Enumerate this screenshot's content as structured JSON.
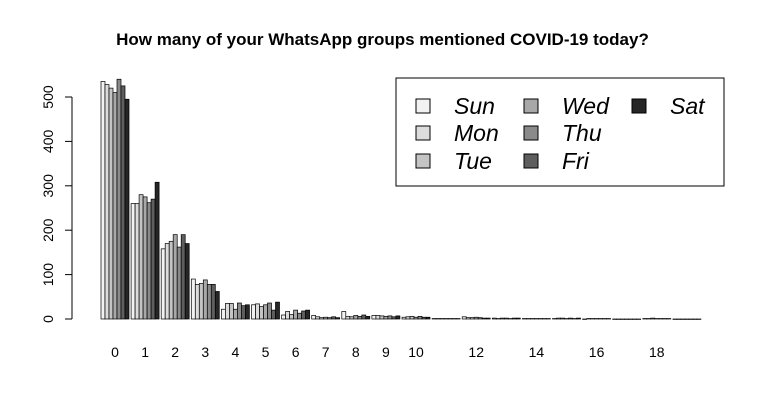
{
  "chart_data": {
    "type": "bar",
    "title": "How many of your WhatsApp groups mentioned COVID-19 today?",
    "xlabel": "",
    "ylabel": "",
    "ylim": [
      0,
      550
    ],
    "yticks": [
      0,
      100,
      200,
      300,
      400,
      500
    ],
    "categories": [
      "0",
      "1",
      "2",
      "3",
      "4",
      "5",
      "6",
      "7",
      "8",
      "9",
      "10",
      "11",
      "12",
      "13",
      "14",
      "15",
      "16",
      "17",
      "18",
      "19"
    ],
    "x_tick_labels": [
      {
        "index": 0,
        "label": "0"
      },
      {
        "index": 1,
        "label": "1"
      },
      {
        "index": 2,
        "label": "2"
      },
      {
        "index": 3,
        "label": "3"
      },
      {
        "index": 4,
        "label": "4"
      },
      {
        "index": 5,
        "label": "5"
      },
      {
        "index": 6,
        "label": "6"
      },
      {
        "index": 7,
        "label": "7"
      },
      {
        "index": 8,
        "label": "8"
      },
      {
        "index": 9,
        "label": "9"
      },
      {
        "index": 10,
        "label": "10"
      },
      {
        "index": 12,
        "label": "12"
      },
      {
        "index": 14,
        "label": "14"
      },
      {
        "index": 16,
        "label": "16"
      },
      {
        "index": 18,
        "label": "18"
      }
    ],
    "grid": false,
    "legend_position": "top-right",
    "series": [
      {
        "name": "Sun",
        "color": "#f2f2f2",
        "values": [
          535,
          260,
          158,
          90,
          22,
          32,
          9,
          8,
          17,
          8,
          4,
          1,
          5,
          2,
          1,
          1,
          0,
          0,
          1,
          0
        ]
      },
      {
        "name": "Mon",
        "color": "#dcdcdc",
        "values": [
          528,
          260,
          170,
          78,
          35,
          34,
          17,
          5,
          6,
          8,
          5,
          1,
          3,
          1,
          1,
          2,
          1,
          0,
          1,
          0
        ]
      },
      {
        "name": "Tue",
        "color": "#c4c4c4",
        "values": [
          520,
          280,
          175,
          80,
          35,
          28,
          10,
          3,
          5,
          7,
          6,
          1,
          3,
          2,
          1,
          2,
          1,
          0,
          2,
          0
        ]
      },
      {
        "name": "Wed",
        "color": "#a8a8a8",
        "values": [
          510,
          275,
          190,
          88,
          22,
          32,
          20,
          4,
          8,
          6,
          4,
          1,
          4,
          2,
          1,
          1,
          1,
          0,
          1,
          0
        ]
      },
      {
        "name": "Thu",
        "color": "#8a8a8a",
        "values": [
          540,
          262,
          162,
          78,
          36,
          36,
          13,
          3,
          6,
          7,
          6,
          1,
          3,
          1,
          1,
          2,
          1,
          0,
          1,
          0
        ]
      },
      {
        "name": "Fri",
        "color": "#5e5e5e",
        "values": [
          525,
          270,
          190,
          78,
          30,
          20,
          18,
          5,
          9,
          5,
          4,
          1,
          2,
          2,
          1,
          1,
          1,
          0,
          1,
          0
        ]
      },
      {
        "name": "Sat",
        "color": "#262626",
        "values": [
          495,
          308,
          170,
          62,
          32,
          38,
          20,
          3,
          6,
          7,
          4,
          1,
          2,
          2,
          1,
          2,
          1,
          0,
          1,
          0
        ]
      }
    ]
  }
}
